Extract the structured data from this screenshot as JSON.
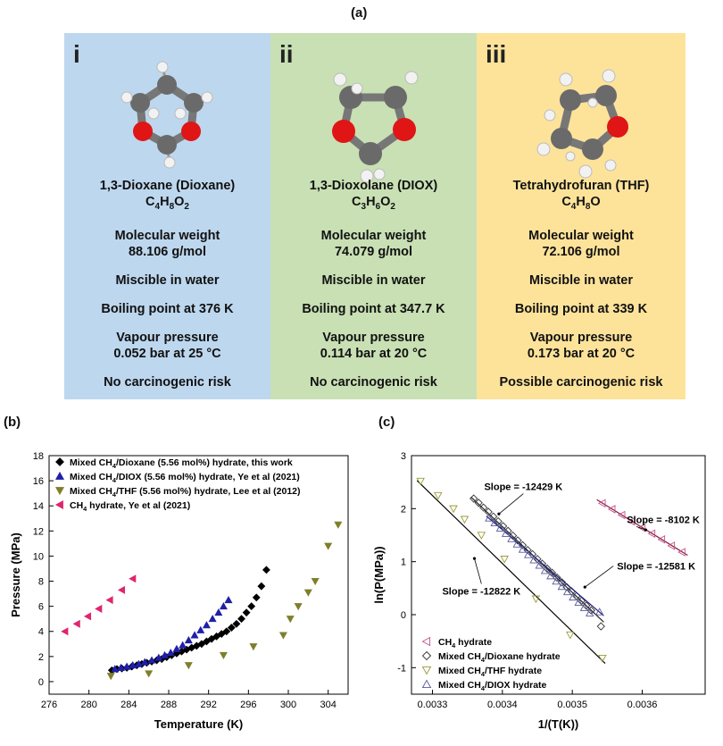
{
  "panel_a": {
    "label": "(a)",
    "cards": [
      {
        "roman": "i",
        "bg": "#bdd7ee",
        "name": "1,3-Dioxane (Dioxane)",
        "formula": [
          [
            "C",
            "4"
          ],
          [
            "H",
            "8"
          ],
          [
            "O",
            "2"
          ]
        ],
        "mw_label": "Molecular weight",
        "mw_value": "88.106 g/mol",
        "miscible": "Miscible in water",
        "boiling": "Boiling point at 376 K",
        "vp_label": "Vapour pressure",
        "vp_value": "0.052 bar at 25 °C",
        "risk": "No carcinogenic risk"
      },
      {
        "roman": "ii",
        "bg": "#c8e0b4",
        "name": "1,3-Dioxolane (DIOX)",
        "formula": [
          [
            "C",
            "3"
          ],
          [
            "H",
            "6"
          ],
          [
            "O",
            "2"
          ]
        ],
        "mw_label": "Molecular weight",
        "mw_value": "74.079 g/mol",
        "miscible": "Miscible in water",
        "boiling": "Boiling point at 347.7 K",
        "vp_label": "Vapour pressure",
        "vp_value": "0.114 bar at 20 °C",
        "risk": "No carcinogenic risk"
      },
      {
        "roman": "iii",
        "bg": "#fde39a",
        "name": "Tetrahydrofuran (THF)",
        "formula": [
          [
            "C",
            "4"
          ],
          [
            "H",
            "8"
          ],
          [
            "O",
            ""
          ]
        ],
        "mw_label": "Molecular weight",
        "mw_value": "72.106 g/mol",
        "miscible": "Miscible in water",
        "boiling": "Boiling point at 339 K",
        "vp_label": "Vapour pressure",
        "vp_value": "0.173 bar at 20 °C",
        "risk": "Possible carcinogenic risk"
      }
    ]
  },
  "chart_data": [
    {
      "panel_label": "(b)",
      "type": "scatter",
      "xlabel": "Temperature (K)",
      "ylabel": "Pressure (MPa)",
      "xlim": [
        276,
        306
      ],
      "ylim": [
        -1,
        18
      ],
      "xticks": [
        276,
        280,
        284,
        288,
        292,
        296,
        300,
        304
      ],
      "yticks": [
        0,
        2,
        4,
        6,
        8,
        10,
        12,
        14,
        16,
        18
      ],
      "legend_position": "top-left",
      "series": [
        {
          "name": "Mixed CH4/Dioxane (5.56 mol%) hydrate, this work",
          "legend": [
            [
              "Mixed CH",
              "4",
              "/Dioxane (5.56 mol%) hydrate, this work"
            ]
          ],
          "marker": "diamond",
          "color": "#000000",
          "x": [
            282.3,
            282.8,
            283.3,
            283.8,
            284.3,
            284.8,
            285.3,
            285.8,
            286.3,
            286.8,
            287.3,
            287.8,
            288.3,
            288.8,
            289.3,
            289.8,
            290.3,
            290.8,
            291.3,
            291.8,
            292.3,
            292.8,
            293.3,
            293.8,
            294.3,
            294.8,
            295.3,
            295.8,
            296.3,
            296.8,
            297.3,
            297.8
          ],
          "y": [
            0.9,
            1.0,
            1.05,
            1.1,
            1.2,
            1.3,
            1.4,
            1.5,
            1.6,
            1.7,
            1.8,
            1.95,
            2.1,
            2.25,
            2.4,
            2.55,
            2.7,
            2.85,
            3.0,
            3.2,
            3.4,
            3.6,
            3.8,
            4.0,
            4.3,
            4.6,
            5.0,
            5.5,
            6.0,
            6.7,
            7.6,
            8.9
          ]
        },
        {
          "name": "Mixed CH4/DIOX (5.56 mol%) hydrate, Ye et al (2021)",
          "legend": [
            [
              "Mixed CH",
              "4",
              "/DIOX (5.56 mol%) hydrate, Ye et al (2021)"
            ]
          ],
          "marker": "triangle-up",
          "color": "#1f1fa8",
          "x": [
            282.6,
            283.2,
            283.8,
            284.4,
            285.0,
            285.6,
            286.3,
            287.0,
            287.6,
            288.2,
            288.8,
            289.4,
            290.0,
            290.6,
            291.2,
            291.8,
            292.4,
            293.0,
            293.5,
            294.0
          ],
          "y": [
            1.0,
            1.1,
            1.2,
            1.3,
            1.4,
            1.55,
            1.7,
            1.9,
            2.1,
            2.3,
            2.6,
            2.9,
            3.3,
            3.7,
            4.1,
            4.5,
            5.0,
            5.5,
            6.0,
            6.5
          ]
        },
        {
          "name": "Mixed CH4/THF (5.56 mol%) hydrate, Lee et al (2012)",
          "legend": [
            [
              "Mixed CH",
              "4",
              "/THF (5.56 mol%) hydrate, Lee et al (2012)"
            ]
          ],
          "marker": "triangle-down",
          "color": "#7f7f2a",
          "x": [
            282.2,
            286.0,
            290.0,
            293.5,
            296.5,
            299.5,
            300.2,
            301.0,
            302.0,
            302.7,
            304.0,
            305.0
          ],
          "y": [
            0.45,
            0.65,
            1.3,
            2.1,
            2.8,
            3.7,
            5.0,
            6.0,
            7.1,
            8.0,
            10.8,
            12.5
          ]
        },
        {
          "name": "CH4 hydrate, Ye et al (2021)",
          "legend": [
            [
              "CH",
              "4",
              " hydrate, Ye et al (2021)"
            ]
          ],
          "marker": "triangle-left",
          "color": "#e0246e",
          "x": [
            277.6,
            278.8,
            279.9,
            281.0,
            282.1,
            283.3,
            284.4
          ],
          "y": [
            4.0,
            4.6,
            5.2,
            5.8,
            6.5,
            7.3,
            8.2
          ]
        }
      ]
    },
    {
      "panel_label": "(c)",
      "type": "scatter",
      "xlabel": "1/(T(K))",
      "ylabel": "ln(P(MPa))",
      "xlim": [
        0.00327,
        0.00369
      ],
      "ylim": [
        -1.5,
        3
      ],
      "xticks": [
        0.0033,
        0.0034,
        0.0035,
        0.0036
      ],
      "xtick_labels": [
        "0.0033",
        "0.0034",
        "0.0035",
        "0.0036"
      ],
      "yticks": [
        -1,
        0,
        1,
        2,
        3
      ],
      "legend_position": "bottom-left",
      "annotations": [
        {
          "text": "Slope = -12429 K",
          "x": 0.00343,
          "y": 2.35
        },
        {
          "text": "Slope = -8102 K",
          "x": 0.00363,
          "y": 1.73
        },
        {
          "text": "Slope = -12581 K",
          "x": 0.00362,
          "y": 0.85
        },
        {
          "text": "Slope = -12822 K",
          "x": 0.00337,
          "y": 0.38
        }
      ],
      "series": [
        {
          "name": "CH4 hydrate",
          "legend": [
            [
              "CH",
              "4",
              " hydrate"
            ]
          ],
          "marker": "triangle-left",
          "color": "#c0508a",
          "x": [
            0.003543,
            0.003557,
            0.003571,
            0.003585,
            0.0036,
            0.003614,
            0.003628,
            0.003642,
            0.003657
          ],
          "y": [
            2.1,
            1.99,
            1.88,
            1.76,
            1.64,
            1.53,
            1.42,
            1.3,
            1.18
          ],
          "fit": {
            "x": [
              0.003535,
              0.003665
            ],
            "y": [
              2.17,
              1.12
            ],
            "color": "#8b1a3a"
          }
        },
        {
          "name": "Mixed CH4/Dioxane hydrate",
          "legend": [
            [
              "Mixed CH",
              "4",
              "/Dioxane hydrate"
            ]
          ],
          "marker": "diamond-open",
          "color": "#333333",
          "x": [
            0.003359,
            0.003366,
            0.003373,
            0.00338,
            0.003387,
            0.003394,
            0.003401,
            0.003408,
            0.003415,
            0.003422,
            0.003429,
            0.003436,
            0.003443,
            0.00345,
            0.003457,
            0.003464,
            0.003471,
            0.003478,
            0.003485,
            0.003492,
            0.003499,
            0.003506,
            0.003513,
            0.00352,
            0.003527,
            0.003541
          ],
          "y": [
            2.19,
            2.11,
            2.02,
            1.94,
            1.85,
            1.76,
            1.67,
            1.58,
            1.49,
            1.4,
            1.31,
            1.22,
            1.14,
            1.05,
            0.96,
            0.87,
            0.79,
            0.7,
            0.61,
            0.52,
            0.44,
            0.35,
            0.26,
            0.17,
            0.08,
            -0.22
          ],
          "fit": {
            "x": [
              0.003355,
              0.003545
            ],
            "y": [
              2.22,
              -0.14
            ],
            "color": "#222222"
          }
        },
        {
          "name": "Mixed CH4/THF hydrate",
          "legend": [
            [
              "Mixed CH",
              "4",
              "/THF hydrate"
            ]
          ],
          "marker": "triangle-down",
          "color": "#9a9a3a",
          "x": [
            0.003283,
            0.003308,
            0.00333,
            0.003346,
            0.00337,
            0.003403,
            0.003448,
            0.003497,
            0.003543
          ],
          "y": [
            2.52,
            2.25,
            2.0,
            1.8,
            1.5,
            1.05,
            0.3,
            -0.38,
            -0.82
          ],
          "fit": {
            "x": [
              0.003278,
              0.003547
            ],
            "y": [
              2.53,
              -0.92
            ],
            "color": "#000000"
          }
        },
        {
          "name": "Mixed CH4/DIOX hydrate",
          "legend": [
            [
              "Mixed CH",
              "4",
              "/DIOX hydrate"
            ]
          ],
          "marker": "triangle-up",
          "color": "#5a5a9a",
          "x": [
            0.003381,
            0.003389,
            0.003397,
            0.003405,
            0.003413,
            0.003421,
            0.003429,
            0.003437,
            0.003445,
            0.003453,
            0.003461,
            0.003469,
            0.003477,
            0.003485,
            0.003493,
            0.003501,
            0.003509,
            0.003517,
            0.003525,
            0.003539
          ],
          "y": [
            1.82,
            1.73,
            1.63,
            1.53,
            1.43,
            1.33,
            1.23,
            1.13,
            1.03,
            0.93,
            0.83,
            0.73,
            0.63,
            0.53,
            0.43,
            0.33,
            0.23,
            0.13,
            0.03,
            0.05
          ],
          "fit": {
            "x": [
              0.003377,
              0.003545
            ],
            "y": [
              1.86,
              -0.02
            ],
            "color": "#1f1f7a"
          }
        }
      ]
    }
  ]
}
